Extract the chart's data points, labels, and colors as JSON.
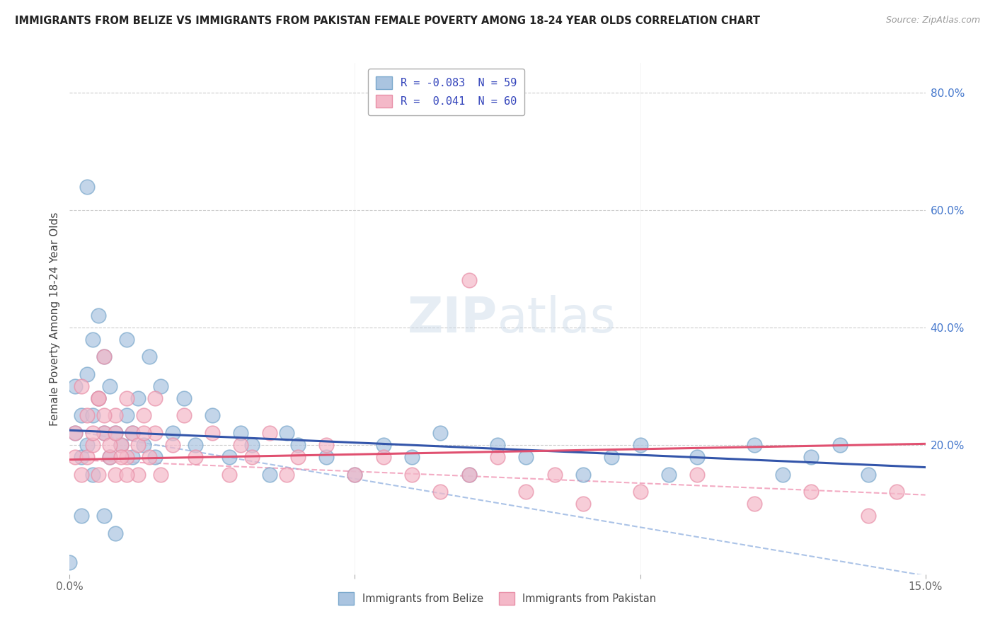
{
  "title": "IMMIGRANTS FROM BELIZE VS IMMIGRANTS FROM PAKISTAN FEMALE POVERTY AMONG 18-24 YEAR OLDS CORRELATION CHART",
  "source": "Source: ZipAtlas.com",
  "ylabel": "Female Poverty Among 18-24 Year Olds",
  "legend_belize_R": "-0.083",
  "legend_belize_N": "59",
  "legend_pakistan_R": "0.041",
  "legend_pakistan_N": "60",
  "belize_color": "#aac4e0",
  "pakistan_color": "#f4b8c8",
  "belize_edge_color": "#7aa8cc",
  "pakistan_edge_color": "#e890a8",
  "belize_line_color": "#3355aa",
  "pakistan_line_color": "#e05070",
  "belize_dash_color": "#88aadd",
  "pakistan_dash_color": "#ee88aa",
  "watermark_color": "#dde8f0",
  "background_color": "#ffffff",
  "grid_color": "#cccccc",
  "xlim": [
    0.0,
    0.15
  ],
  "ylim": [
    -0.02,
    0.85
  ],
  "belize_intercept": 0.225,
  "belize_slope": -0.42,
  "pakistan_intercept": 0.175,
  "pakistan_slope": 0.18,
  "belize_dash_intercept": 0.225,
  "belize_dash_slope": -1.65,
  "pakistan_dash_intercept": 0.175,
  "pakistan_dash_slope": -0.4,
  "belize_points_x": [
    0.001,
    0.001,
    0.002,
    0.002,
    0.003,
    0.003,
    0.004,
    0.004,
    0.004,
    0.005,
    0.005,
    0.006,
    0.006,
    0.007,
    0.007,
    0.008,
    0.009,
    0.01,
    0.01,
    0.011,
    0.011,
    0.012,
    0.013,
    0.014,
    0.015,
    0.016,
    0.018,
    0.02,
    0.022,
    0.025,
    0.028,
    0.03,
    0.032,
    0.035,
    0.038,
    0.04,
    0.045,
    0.05,
    0.055,
    0.06,
    0.065,
    0.07,
    0.075,
    0.08,
    0.09,
    0.095,
    0.1,
    0.105,
    0.11,
    0.12,
    0.125,
    0.13,
    0.135,
    0.14,
    0.003,
    0.002,
    0.006,
    0.008,
    0.0
  ],
  "belize_points_y": [
    0.22,
    0.3,
    0.25,
    0.18,
    0.2,
    0.32,
    0.25,
    0.15,
    0.38,
    0.28,
    0.42,
    0.22,
    0.35,
    0.3,
    0.18,
    0.22,
    0.2,
    0.25,
    0.38,
    0.18,
    0.22,
    0.28,
    0.2,
    0.35,
    0.18,
    0.3,
    0.22,
    0.28,
    0.2,
    0.25,
    0.18,
    0.22,
    0.2,
    0.15,
    0.22,
    0.2,
    0.18,
    0.15,
    0.2,
    0.18,
    0.22,
    0.15,
    0.2,
    0.18,
    0.15,
    0.18,
    0.2,
    0.15,
    0.18,
    0.2,
    0.15,
    0.18,
    0.2,
    0.15,
    0.64,
    0.08,
    0.08,
    0.05,
    0.0
  ],
  "pakistan_points_x": [
    0.001,
    0.001,
    0.002,
    0.003,
    0.003,
    0.004,
    0.005,
    0.005,
    0.006,
    0.006,
    0.007,
    0.008,
    0.008,
    0.009,
    0.01,
    0.01,
    0.011,
    0.012,
    0.013,
    0.014,
    0.015,
    0.016,
    0.018,
    0.02,
    0.022,
    0.025,
    0.028,
    0.03,
    0.032,
    0.035,
    0.038,
    0.04,
    0.045,
    0.05,
    0.055,
    0.06,
    0.065,
    0.07,
    0.075,
    0.08,
    0.085,
    0.09,
    0.1,
    0.11,
    0.12,
    0.13,
    0.14,
    0.145,
    0.002,
    0.004,
    0.005,
    0.006,
    0.007,
    0.008,
    0.009,
    0.01,
    0.012,
    0.013,
    0.015,
    0.07
  ],
  "pakistan_points_y": [
    0.18,
    0.22,
    0.15,
    0.25,
    0.18,
    0.2,
    0.28,
    0.15,
    0.22,
    0.35,
    0.18,
    0.25,
    0.15,
    0.2,
    0.28,
    0.18,
    0.22,
    0.15,
    0.25,
    0.18,
    0.22,
    0.15,
    0.2,
    0.25,
    0.18,
    0.22,
    0.15,
    0.2,
    0.18,
    0.22,
    0.15,
    0.18,
    0.2,
    0.15,
    0.18,
    0.15,
    0.12,
    0.15,
    0.18,
    0.12,
    0.15,
    0.1,
    0.12,
    0.15,
    0.1,
    0.12,
    0.08,
    0.12,
    0.3,
    0.22,
    0.28,
    0.25,
    0.2,
    0.22,
    0.18,
    0.15,
    0.2,
    0.22,
    0.28,
    0.48
  ]
}
